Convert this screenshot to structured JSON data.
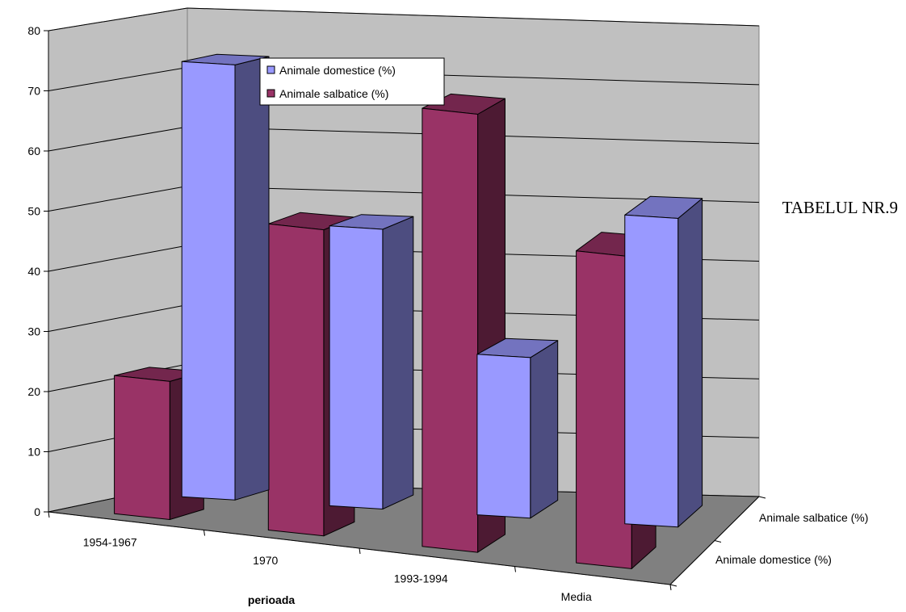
{
  "chart_data": {
    "type": "bar",
    "title": "",
    "note": "TABELUL NR.9",
    "xlabel": "perioada",
    "ylabel": "",
    "ylim": [
      0,
      80
    ],
    "yticks": [
      0,
      10,
      20,
      30,
      40,
      50,
      60,
      70,
      80
    ],
    "categories": [
      "1954-1967",
      "1970",
      "1993-1994",
      "Media"
    ],
    "series": [
      {
        "name": "Animale domestice (%)",
        "values": [
          73,
          47,
          27,
          52
        ],
        "color": "#9999ff"
      },
      {
        "name": "Animale salbatice (%)",
        "values": [
          23,
          51,
          73,
          52
        ],
        "color": "#993366"
      }
    ],
    "legend_position": "top-center",
    "grid": true,
    "depth_labels": [
      "Animale salbatice (%)",
      "Animale domestice (%)"
    ]
  }
}
